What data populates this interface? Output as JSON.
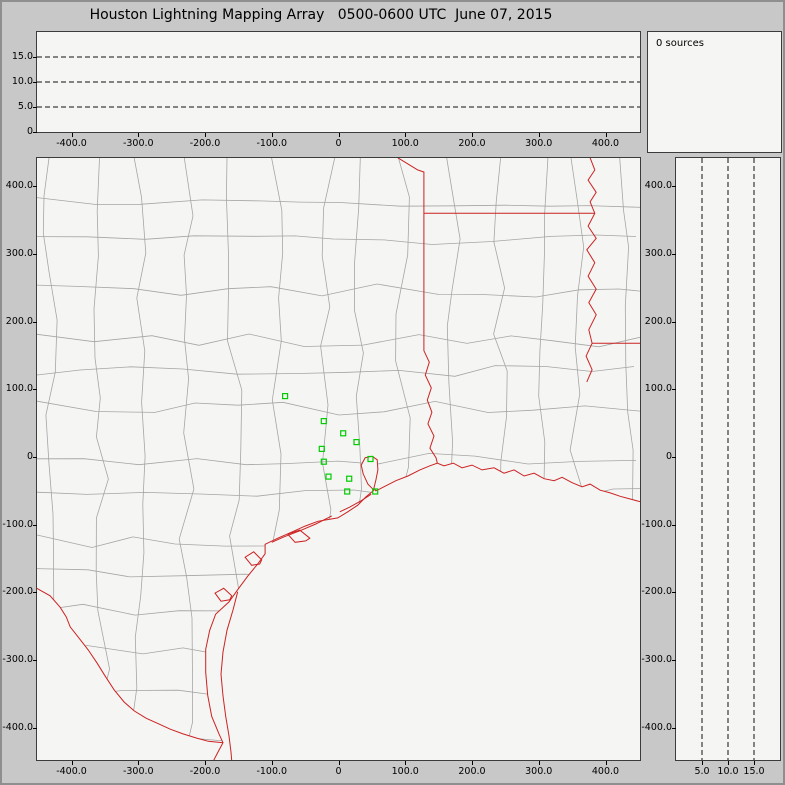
{
  "chart_data": {
    "type": "composite",
    "title": "Houston Lightning Mapping Array   0500-0600 UTC  June 07, 2015",
    "panels": {
      "alt_ew": {
        "type": "scatter",
        "x_range": [
          -452,
          452
        ],
        "x_ticks": [
          "-400.0",
          "-300.0",
          "-200.0",
          "-100.0",
          "0",
          "100.0",
          "200.0",
          "300.0",
          "400.0"
        ],
        "y_range": [
          0,
          20
        ],
        "y_ticks": [
          "15.0",
          "10.0",
          "5.0",
          "0"
        ],
        "y_gridlines": [
          15,
          10,
          5
        ],
        "points": []
      },
      "sources": {
        "type": "text",
        "text": "0 sources"
      },
      "plan": {
        "type": "map",
        "x_range": [
          -452,
          452
        ],
        "x_ticks": [
          "-400.0",
          "-300.0",
          "-200.0",
          "-100.0",
          "0",
          "100.0",
          "200.0",
          "300.0",
          "400.0"
        ],
        "y_range": [
          -443,
          442
        ],
        "y_ticks": [
          "400.0",
          "300.0",
          "200.0",
          "100.0",
          "0",
          "-100.0",
          "-200.0",
          "-300.0",
          "-400.0"
        ],
        "stations_km": [
          [
            -80,
            90
          ],
          [
            -22,
            53
          ],
          [
            7,
            35
          ],
          [
            -25,
            12
          ],
          [
            27,
            22
          ],
          [
            -22,
            -7
          ],
          [
            -15,
            -29
          ],
          [
            16,
            -32
          ],
          [
            48,
            -3
          ],
          [
            13,
            -51
          ],
          [
            55,
            -51
          ]
        ],
        "points": []
      },
      "alt_ns": {
        "type": "scatter",
        "x_range": [
          0,
          20
        ],
        "x_ticks": [
          "5.0",
          "10.0",
          "15.0"
        ],
        "x_gridlines": [
          5,
          10,
          15
        ],
        "y_range": [
          -443,
          442
        ],
        "y_ticks": [
          "400.0",
          "300.0",
          "200.0",
          "100.0",
          "0",
          "-100.0",
          "-200.0",
          "-300.0",
          "-400.0"
        ],
        "points": []
      }
    },
    "map_outline_km": {
      "tx_la_border": [
        [
          89,
          442
        ],
        [
          107,
          431
        ],
        [
          119,
          424
        ],
        [
          128,
          421
        ],
        [
          128,
          360
        ],
        [
          128,
          157
        ],
        [
          136,
          140
        ],
        [
          130,
          121
        ],
        [
          139,
          102
        ],
        [
          133,
          84
        ],
        [
          140,
          66
        ],
        [
          134,
          49
        ],
        [
          143,
          31
        ],
        [
          137,
          13
        ],
        [
          146,
          -1
        ],
        [
          148,
          -9
        ]
      ],
      "ar_la_border": [
        [
          128,
          360
        ],
        [
          384,
          360
        ]
      ],
      "mississippi_river": [
        [
          377,
          442
        ],
        [
          384,
          424
        ],
        [
          374,
          409
        ],
        [
          386,
          391
        ],
        [
          377,
          377
        ],
        [
          384,
          360
        ],
        [
          374,
          341
        ],
        [
          386,
          323
        ],
        [
          372,
          306
        ],
        [
          384,
          287
        ],
        [
          374,
          267
        ],
        [
          386,
          248
        ],
        [
          375,
          228
        ],
        [
          386,
          210
        ],
        [
          375,
          188
        ],
        [
          380,
          168
        ],
        [
          371,
          149
        ],
        [
          380,
          129
        ],
        [
          372,
          111
        ]
      ],
      "la_ms_border": [
        [
          380,
          168
        ],
        [
          452,
          168
        ]
      ],
      "coast": [
        [
          -187,
          -448
        ],
        [
          -179,
          -433
        ],
        [
          -173,
          -422
        ],
        [
          -179,
          -409
        ],
        [
          -190,
          -383
        ],
        [
          -196,
          -352
        ],
        [
          -199,
          -318
        ],
        [
          -199,
          -284
        ],
        [
          -193,
          -256
        ],
        [
          -184,
          -232
        ],
        [
          -164,
          -214
        ],
        [
          -151,
          -196
        ],
        [
          -136,
          -176
        ],
        [
          -121,
          -158
        ],
        [
          -110,
          -143
        ],
        [
          -110,
          -129
        ],
        [
          -91,
          -120
        ],
        [
          -70,
          -111
        ],
        [
          -50,
          -102
        ],
        [
          -31,
          -95
        ],
        [
          -13,
          -92
        ],
        [
          -1,
          -90
        ],
        [
          14,
          -81
        ],
        [
          29,
          -71
        ],
        [
          41,
          -59
        ],
        [
          53,
          -49
        ],
        [
          44,
          -40
        ],
        [
          37,
          -25
        ],
        [
          34,
          -12
        ],
        [
          40,
          -1
        ],
        [
          50,
          1
        ],
        [
          58,
          -4
        ],
        [
          59,
          -19
        ],
        [
          56,
          -34
        ],
        [
          53,
          -46
        ],
        [
          56,
          -50
        ],
        [
          68,
          -44
        ],
        [
          86,
          -35
        ],
        [
          104,
          -28
        ],
        [
          122,
          -19
        ],
        [
          137,
          -13
        ],
        [
          148,
          -9
        ],
        [
          158,
          -13
        ],
        [
          172,
          -9
        ],
        [
          185,
          -16
        ],
        [
          200,
          -12
        ],
        [
          215,
          -19
        ],
        [
          233,
          -16
        ],
        [
          248,
          -24
        ],
        [
          263,
          -19
        ],
        [
          278,
          -28
        ],
        [
          293,
          -24
        ],
        [
          308,
          -32
        ],
        [
          323,
          -35
        ],
        [
          335,
          -30
        ],
        [
          350,
          -38
        ],
        [
          365,
          -44
        ],
        [
          377,
          -40
        ],
        [
          392,
          -49
        ],
        [
          407,
          -53
        ],
        [
          422,
          -58
        ],
        [
          437,
          -62
        ],
        [
          452,
          -66
        ]
      ],
      "rio_grande": [
        [
          -452,
          -194
        ],
        [
          -432,
          -205
        ],
        [
          -417,
          -222
        ],
        [
          -408,
          -236
        ],
        [
          -402,
          -251
        ],
        [
          -389,
          -267
        ],
        [
          -375,
          -285
        ],
        [
          -362,
          -304
        ],
        [
          -350,
          -323
        ],
        [
          -336,
          -344
        ],
        [
          -321,
          -362
        ],
        [
          -306,
          -375
        ],
        [
          -288,
          -386
        ],
        [
          -270,
          -394
        ],
        [
          -252,
          -402
        ],
        [
          -233,
          -409
        ],
        [
          -213,
          -415
        ],
        [
          -195,
          -420
        ],
        [
          -184,
          -421
        ],
        [
          -173,
          -422
        ]
      ],
      "islands": [
        [
          [
            -151,
            -199
          ],
          [
            -158,
            -226
          ],
          [
            -167,
            -256
          ],
          [
            -173,
            -288
          ],
          [
            -176,
            -321
          ],
          [
            -173,
            -353
          ],
          [
            -169,
            -383
          ],
          [
            -164,
            -412
          ],
          [
            -161,
            -436
          ],
          [
            -160,
            -448
          ]
        ],
        [
          [
            49,
            -55
          ],
          [
            35,
            -64
          ],
          [
            17,
            -74
          ],
          [
            2,
            -81
          ]
        ],
        [
          [
            -10,
            -87
          ],
          [
            -34,
            -99
          ],
          [
            -58,
            -109
          ],
          [
            -82,
            -118
          ],
          [
            -100,
            -126
          ]
        ]
      ],
      "bays": [
        [
          [
            -43,
            -120
          ],
          [
            -58,
            -108
          ],
          [
            -76,
            -114
          ],
          [
            -65,
            -126
          ],
          [
            -49,
            -124
          ]
        ],
        [
          [
            -160,
            -205
          ],
          [
            -172,
            -194
          ],
          [
            -185,
            -201
          ],
          [
            -176,
            -213
          ],
          [
            -163,
            -211
          ]
        ],
        [
          [
            -115,
            -152
          ],
          [
            -127,
            -140
          ],
          [
            -140,
            -148
          ],
          [
            -130,
            -160
          ],
          [
            -118,
            -158
          ]
        ]
      ]
    },
    "colors": {
      "background": "#c8c8c8",
      "panel": "#f5f5f3",
      "county": "#a5a5a5",
      "state": "#cc2222",
      "station": "#00cc00",
      "gridline": "#111111",
      "text": "#000000"
    }
  }
}
